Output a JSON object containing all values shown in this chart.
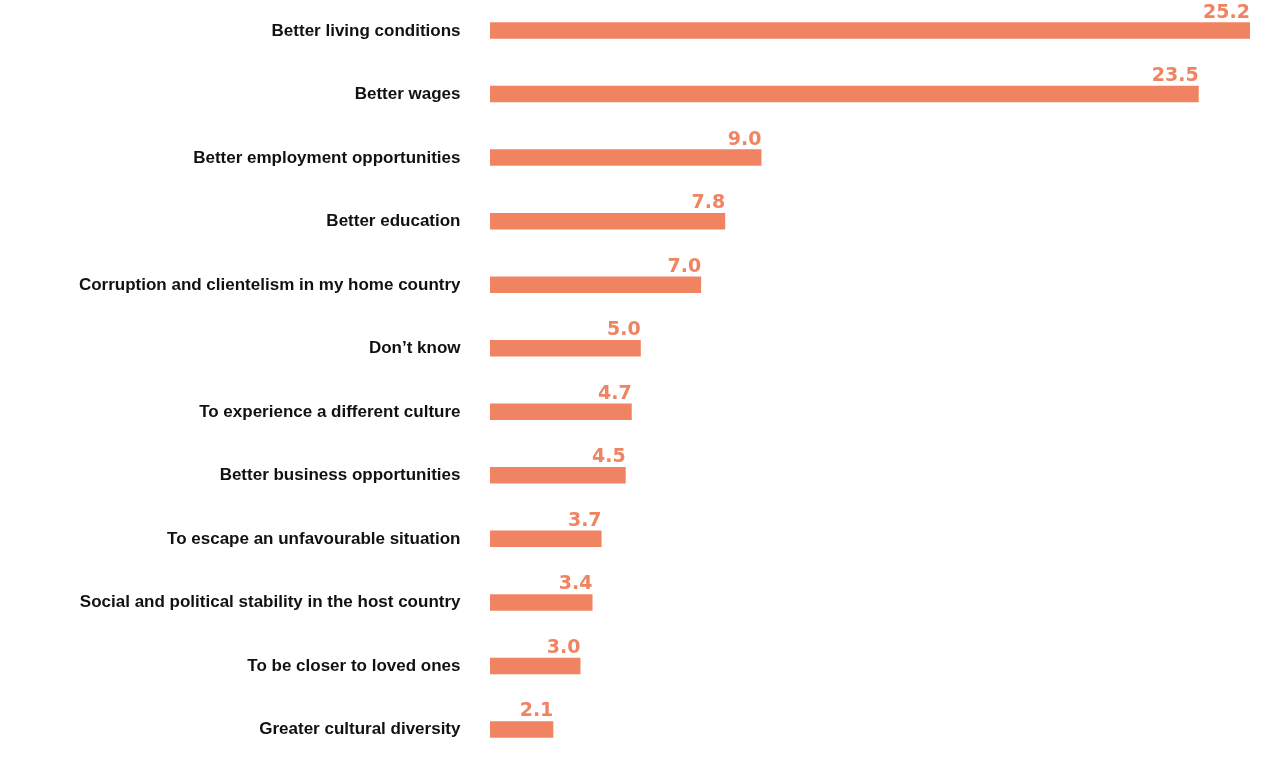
{
  "chart_data": {
    "type": "bar",
    "orientation": "horizontal",
    "categories": [
      "Better living conditions",
      "Better wages",
      "Better employment opportunities",
      "Better education",
      "Corruption and clientelism in my home country",
      "Don’t know",
      "To experience a different culture",
      "Better business opportunities",
      "To escape an unfavourable situation",
      "Social and political stability in the host country",
      "To be closer to loved ones",
      "Greater cultural diversity"
    ],
    "values": [
      25.2,
      23.5,
      9.0,
      7.8,
      7.0,
      5.0,
      4.7,
      4.5,
      3.7,
      3.4,
      3.0,
      2.1
    ],
    "value_labels": [
      "25.2",
      "23.5",
      "9.0",
      "7.8",
      "7.0",
      "5.0",
      "4.7",
      "4.5",
      "3.7",
      "3.4",
      "3.0",
      "2.1"
    ],
    "color": "#f08462"
  }
}
